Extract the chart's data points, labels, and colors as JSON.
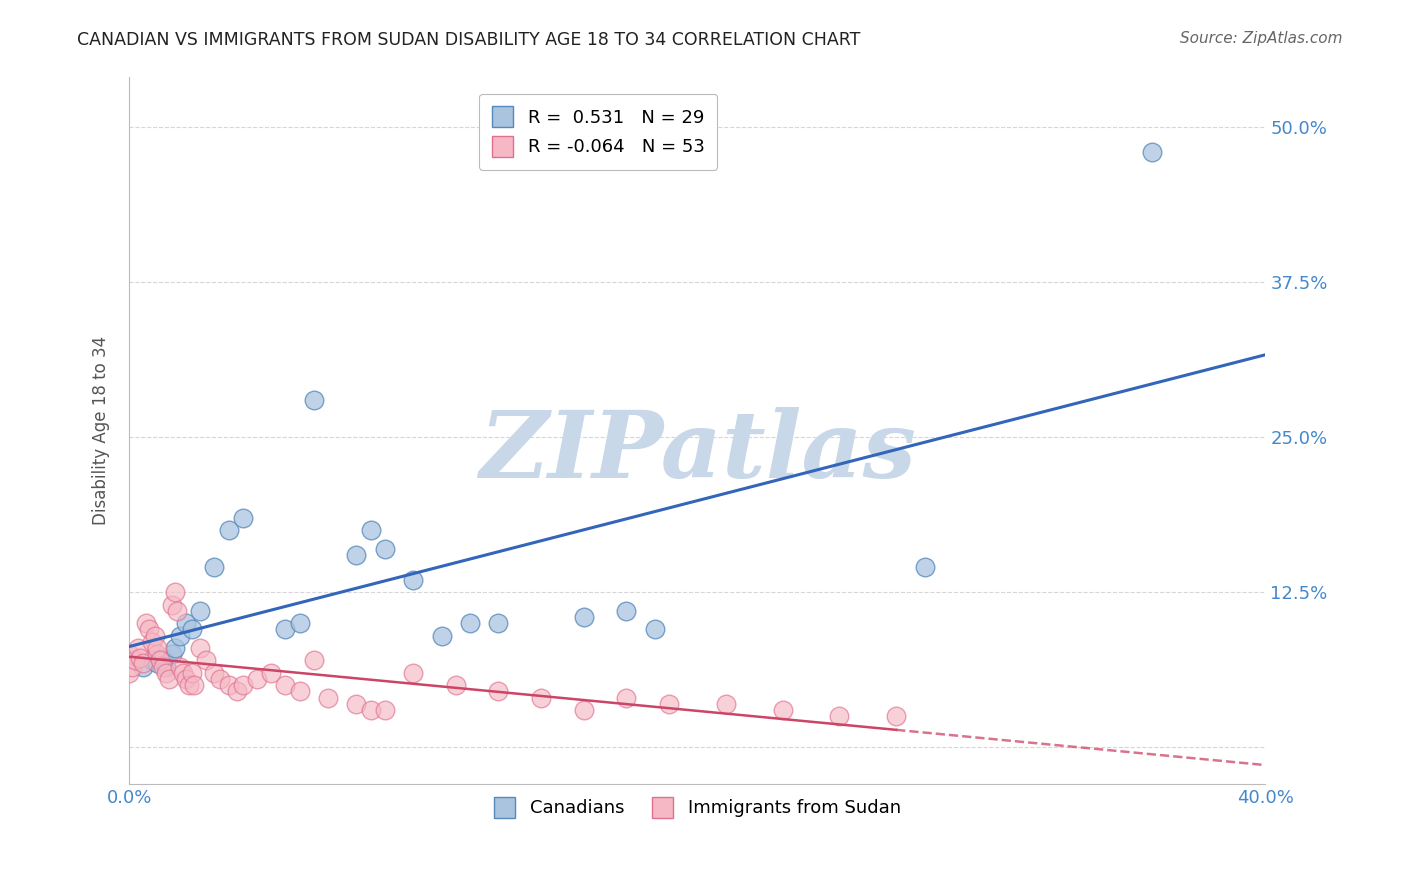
{
  "title": "CANADIAN VS IMMIGRANTS FROM SUDAN DISABILITY AGE 18 TO 34 CORRELATION CHART",
  "source": "Source: ZipAtlas.com",
  "ylabel_label": "Disability Age 18 to 34",
  "x_min": 0.0,
  "x_max": 0.4,
  "y_min": -0.03,
  "y_max": 0.54,
  "x_ticks": [
    0.0,
    0.1,
    0.2,
    0.3,
    0.4
  ],
  "x_tick_labels": [
    "0.0%",
    "",
    "",
    "",
    "40.0%"
  ],
  "y_ticks": [
    0.0,
    0.125,
    0.25,
    0.375,
    0.5
  ],
  "y_tick_labels": [
    "",
    "12.5%",
    "25.0%",
    "37.5%",
    "50.0%"
  ],
  "canadians_x": [
    0.005,
    0.008,
    0.01,
    0.012,
    0.013,
    0.015,
    0.016,
    0.018,
    0.02,
    0.022,
    0.025,
    0.03,
    0.035,
    0.04,
    0.055,
    0.06,
    0.065,
    0.08,
    0.085,
    0.09,
    0.1,
    0.11,
    0.12,
    0.13,
    0.16,
    0.175,
    0.185,
    0.28,
    0.36
  ],
  "canadians_y": [
    0.065,
    0.07,
    0.068,
    0.072,
    0.065,
    0.075,
    0.08,
    0.09,
    0.1,
    0.095,
    0.11,
    0.145,
    0.175,
    0.185,
    0.095,
    0.1,
    0.28,
    0.155,
    0.175,
    0.16,
    0.135,
    0.09,
    0.1,
    0.1,
    0.105,
    0.11,
    0.095,
    0.145,
    0.48
  ],
  "sudanese_x": [
    0.0,
    0.0,
    0.001,
    0.002,
    0.003,
    0.004,
    0.005,
    0.006,
    0.007,
    0.008,
    0.009,
    0.01,
    0.01,
    0.011,
    0.012,
    0.013,
    0.014,
    0.015,
    0.016,
    0.017,
    0.018,
    0.019,
    0.02,
    0.021,
    0.022,
    0.023,
    0.025,
    0.027,
    0.03,
    0.032,
    0.035,
    0.038,
    0.04,
    0.045,
    0.05,
    0.055,
    0.06,
    0.065,
    0.07,
    0.08,
    0.085,
    0.09,
    0.1,
    0.115,
    0.13,
    0.145,
    0.16,
    0.175,
    0.19,
    0.21,
    0.23,
    0.25,
    0.27
  ],
  "sudanese_y": [
    0.06,
    0.075,
    0.065,
    0.07,
    0.08,
    0.072,
    0.068,
    0.1,
    0.095,
    0.085,
    0.09,
    0.075,
    0.08,
    0.07,
    0.065,
    0.06,
    0.055,
    0.115,
    0.125,
    0.11,
    0.065,
    0.06,
    0.055,
    0.05,
    0.06,
    0.05,
    0.08,
    0.07,
    0.06,
    0.055,
    0.05,
    0.045,
    0.05,
    0.055,
    0.06,
    0.05,
    0.045,
    0.07,
    0.04,
    0.035,
    0.03,
    0.03,
    0.06,
    0.05,
    0.045,
    0.04,
    0.03,
    0.04,
    0.035,
    0.035,
    0.03,
    0.025,
    0.025
  ],
  "blue_color": "#aac4e0",
  "pink_color": "#f5b8c4",
  "blue_edge_color": "#5588bb",
  "pink_edge_color": "#e07090",
  "blue_line_color": "#3366bb",
  "pink_line_color": "#cc4466",
  "legend_r_canadian": " 0.531",
  "legend_n_canadian": "29",
  "legend_r_sudanese": "-0.064",
  "legend_n_sudanese": "53",
  "grid_color": "#cccccc",
  "background_color": "#ffffff",
  "watermark_text": "ZIPatlas",
  "watermark_color": "#c8d8e8"
}
